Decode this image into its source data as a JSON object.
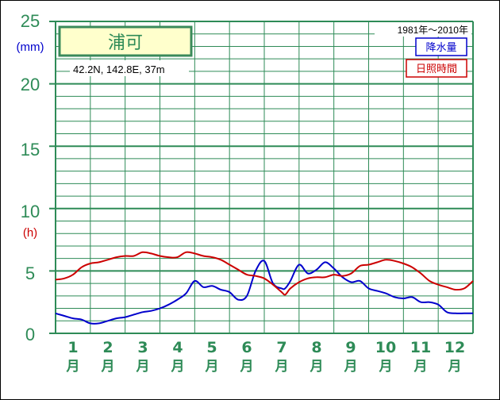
{
  "chart_data": {
    "type": "line",
    "station_name": "浦可",
    "location": "42.2N,  142.8E,  37m",
    "period": "1981年〜2010年",
    "legend": [
      "降水量",
      "日照時間"
    ],
    "unit_precip": "(mm)",
    "unit_sunshine": "(h)",
    "yticks": [
      "0",
      "5",
      "10",
      "15",
      "20",
      "25"
    ],
    "ylim": [
      0,
      25
    ],
    "months": [
      "1",
      "2",
      "3",
      "4",
      "5",
      "6",
      "7",
      "8",
      "9",
      "10",
      "11",
      "12"
    ],
    "month_suffix": "月",
    "x": [
      0,
      0.25,
      0.5,
      0.75,
      1,
      1.25,
      1.5,
      1.75,
      2,
      2.25,
      2.5,
      2.75,
      3,
      3.25,
      3.5,
      3.75,
      4,
      4.25,
      4.5,
      4.75,
      5,
      5.25,
      5.5,
      5.75,
      6,
      6.25,
      6.5,
      6.6,
      6.75,
      7,
      7.25,
      7.5,
      7.75,
      8,
      8.25,
      8.5,
      8.75,
      9,
      9.25,
      9.5,
      9.75,
      10,
      10.25,
      10.5,
      10.75,
      11,
      11.25,
      11.5,
      11.75,
      12
    ],
    "series": [
      {
        "name": "降水量",
        "color": "#0000cc",
        "values": [
          1.6,
          1.4,
          1.2,
          1.1,
          0.8,
          0.8,
          1.0,
          1.2,
          1.3,
          1.5,
          1.7,
          1.8,
          2.0,
          2.3,
          2.7,
          3.2,
          4.2,
          3.7,
          3.8,
          3.5,
          3.3,
          2.7,
          3.0,
          5.0,
          5.8,
          4.0,
          3.6,
          3.6,
          4.2,
          5.5,
          4.8,
          5.1,
          5.7,
          5.2,
          4.5,
          4.1,
          4.2,
          3.6,
          3.4,
          3.2,
          2.9,
          2.8,
          2.9,
          2.5,
          2.5,
          2.3,
          1.7,
          1.6,
          1.6,
          1.6
        ]
      },
      {
        "name": "日照時間",
        "color": "#cc0000",
        "values": [
          4.3,
          4.4,
          4.7,
          5.3,
          5.6,
          5.7,
          5.9,
          6.1,
          6.2,
          6.2,
          6.5,
          6.4,
          6.2,
          6.1,
          6.1,
          6.5,
          6.4,
          6.2,
          6.1,
          5.9,
          5.5,
          5.1,
          4.7,
          4.6,
          4.4,
          3.9,
          3.3,
          3.1,
          3.6,
          4.1,
          4.4,
          4.5,
          4.5,
          4.7,
          4.6,
          4.8,
          5.4,
          5.5,
          5.7,
          5.9,
          5.8,
          5.6,
          5.3,
          4.8,
          4.2,
          3.9,
          3.7,
          3.5,
          3.6,
          4.2
        ]
      }
    ]
  }
}
